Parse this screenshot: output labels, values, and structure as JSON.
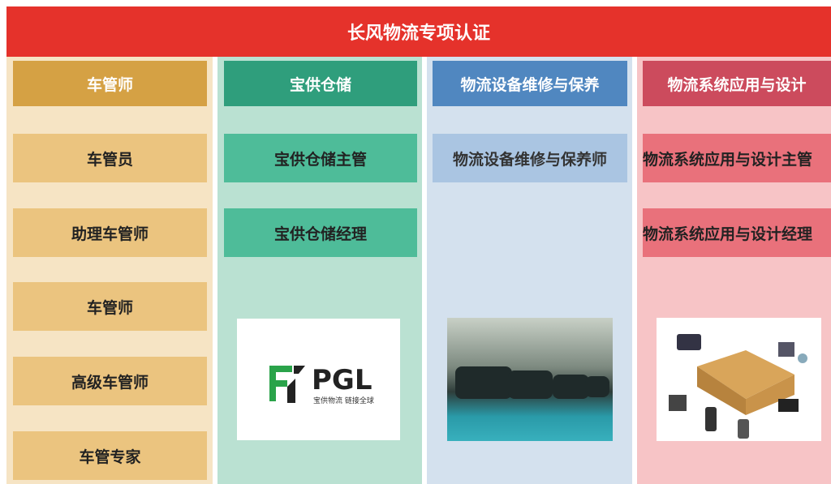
{
  "header": {
    "title": "长风物流专项认证"
  },
  "columns": [
    {
      "title": "车管师",
      "items": [
        "车管员",
        "助理车管师",
        "车管师",
        "高级车管师",
        "车管专家"
      ]
    },
    {
      "title": "宝供仓储",
      "items": [
        "宝供仓储主管",
        "宝供仓储经理"
      ],
      "logo": {
        "name": "PGL",
        "tagline": "宝供物流 链接全球"
      }
    },
    {
      "title": "物流设备维修与保养",
      "items": [
        "物流设备维修与保养师"
      ]
    },
    {
      "title": "物流系统应用与设计",
      "items": [
        "物流系统应用与设计主管",
        "物流系统应用与设计经理"
      ]
    }
  ]
}
